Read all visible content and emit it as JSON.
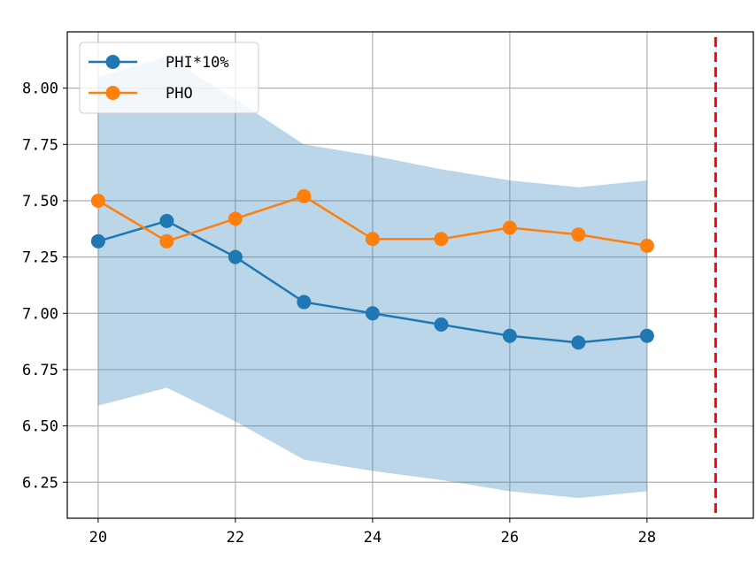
{
  "chart_data": {
    "type": "line",
    "title": "",
    "xlabel": "",
    "ylabel": "",
    "x": [
      20,
      21,
      22,
      23,
      24,
      25,
      26,
      27,
      28
    ],
    "xlim": [
      19.55,
      29.55
    ],
    "ylim": [
      6.09,
      8.25
    ],
    "x_ticks": [
      20,
      22,
      24,
      26,
      28
    ],
    "y_ticks": [
      6.25,
      6.5,
      6.75,
      7.0,
      7.25,
      7.5,
      7.75,
      8.0
    ],
    "y_tick_labels": [
      "6.25",
      "6.50",
      "6.75",
      "7.00",
      "7.25",
      "7.50",
      "7.75",
      "8.00"
    ],
    "grid": true,
    "legend_position": "top-left",
    "series": [
      {
        "name": "PHI*10%",
        "color": "#1f77b4",
        "values": [
          7.32,
          7.41,
          7.25,
          7.05,
          7.0,
          6.95,
          6.9,
          6.87,
          6.9
        ],
        "band_upper": [
          8.05,
          8.14,
          7.95,
          7.75,
          7.7,
          7.64,
          7.59,
          7.56,
          7.59
        ],
        "band_lower": [
          6.59,
          6.67,
          6.52,
          6.35,
          6.3,
          6.26,
          6.21,
          6.18,
          6.21
        ],
        "band_color": "#1f77b4"
      },
      {
        "name": "PHO",
        "color": "#ff7f0e",
        "values": [
          7.5,
          7.32,
          7.42,
          7.52,
          7.33,
          7.33,
          7.38,
          7.35,
          7.3
        ]
      }
    ],
    "vertical_line": {
      "x": 29,
      "color": "#ff0000",
      "style": "dashed"
    }
  }
}
